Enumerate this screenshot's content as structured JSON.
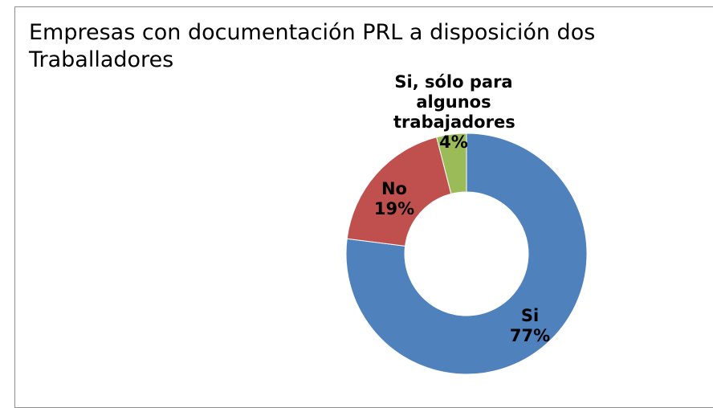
{
  "chart_data": {
    "type": "donut",
    "title": "Empresas con documentación PRL a disposición dos Traballadores",
    "categories": [
      "Si",
      "No",
      "Si, sólo para algunos trabajadores"
    ],
    "values": [
      77,
      19,
      4
    ],
    "value_labels": [
      "77%",
      "19%",
      "4%"
    ],
    "colors": [
      "#4f81bd",
      "#c0504d",
      "#9bbb59"
    ]
  }
}
